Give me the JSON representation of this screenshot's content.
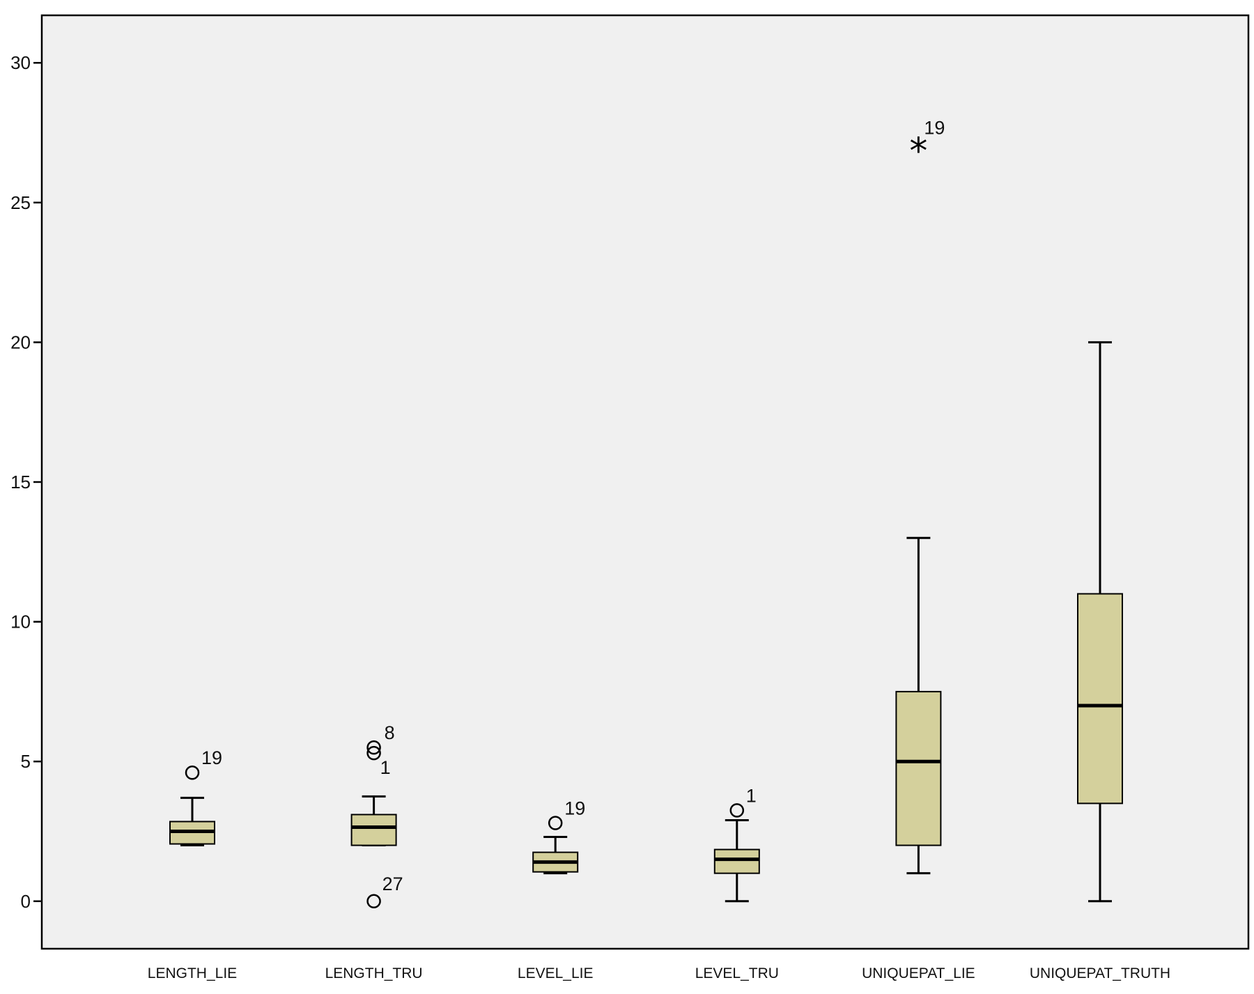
{
  "chart_data": {
    "type": "boxplot",
    "title": "",
    "xlabel": "",
    "ylabel": "",
    "ylim": [
      -1.7,
      31.7
    ],
    "y_ticks": [
      0,
      5,
      10,
      15,
      20,
      25,
      30
    ],
    "grid": false,
    "colors": {
      "plot_bg": "#f0f0f0",
      "box_fill": "#d4d09c",
      "stroke": "#000000"
    },
    "boxes": [
      {
        "category": "LENGTH_LIE",
        "whisker_low": 2.0,
        "q1": 2.05,
        "median": 2.5,
        "q3": 2.85,
        "whisker_high": 3.7,
        "outliers": [
          {
            "value": 4.6,
            "marker": "circle",
            "label": "19"
          }
        ]
      },
      {
        "category": "LENGTH_TRU",
        "whisker_low": 2.0,
        "q1": 2.0,
        "median": 2.65,
        "q3": 3.1,
        "whisker_high": 3.75,
        "outliers": [
          {
            "value": 5.5,
            "marker": "circle",
            "label": "8"
          },
          {
            "value": 5.3,
            "marker": "circle",
            "label": "1"
          },
          {
            "value": 0.0,
            "marker": "circle",
            "label": "27"
          }
        ]
      },
      {
        "category": "LEVEL_LIE",
        "whisker_low": 1.0,
        "q1": 1.05,
        "median": 1.4,
        "q3": 1.75,
        "whisker_high": 2.3,
        "outliers": [
          {
            "value": 2.8,
            "marker": "circle",
            "label": "19"
          }
        ]
      },
      {
        "category": "LEVEL_TRU",
        "whisker_low": 0.0,
        "q1": 1.0,
        "median": 1.5,
        "q3": 1.85,
        "whisker_high": 2.9,
        "outliers": [
          {
            "value": 3.25,
            "marker": "circle",
            "label": "1"
          }
        ]
      },
      {
        "category": "UNIQUEPAT_LIE",
        "whisker_low": 1.0,
        "q1": 2.0,
        "median": 5.0,
        "q3": 7.5,
        "whisker_high": 13.0,
        "outliers": [
          {
            "value": 27.0,
            "marker": "star",
            "label": "19"
          }
        ]
      },
      {
        "category": "UNIQUEPAT_TRUTH",
        "whisker_low": 0.0,
        "q1": 3.5,
        "median": 7.0,
        "q3": 11.0,
        "whisker_high": 20.0,
        "outliers": []
      }
    ]
  }
}
